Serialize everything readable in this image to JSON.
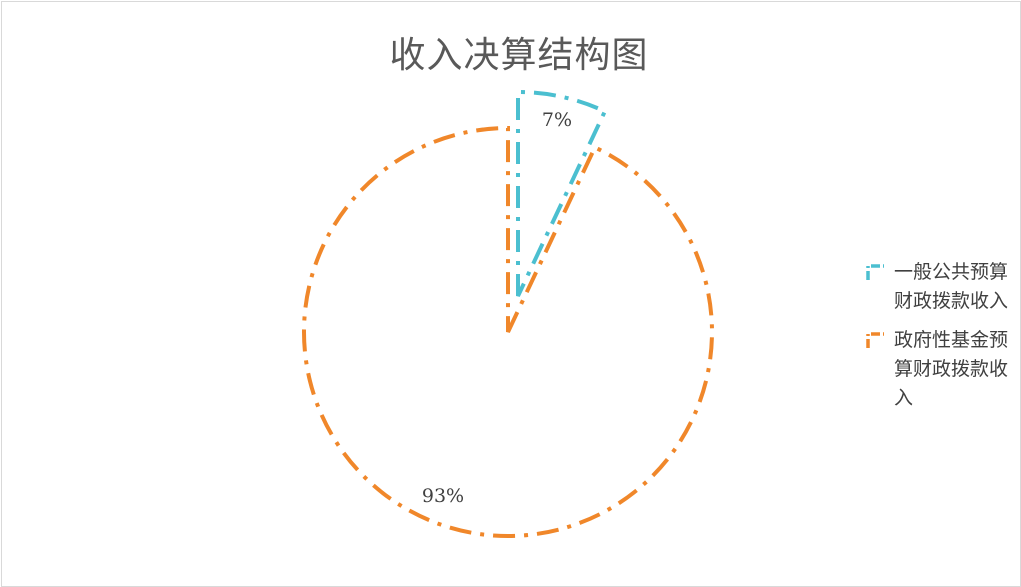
{
  "chart_data": {
    "type": "pie",
    "title": "收入决算结构图",
    "categories": [
      "一般公共预算财政拨款收入",
      "政府性基金预算财政拨款收入"
    ],
    "values": [
      7,
      93
    ],
    "data_labels": [
      "7%",
      "93%"
    ],
    "colors": [
      "#4bbfd0",
      "#f0872a"
    ],
    "legend_position": "right",
    "exploded_slice": "一般公共预算财政拨款收入"
  }
}
